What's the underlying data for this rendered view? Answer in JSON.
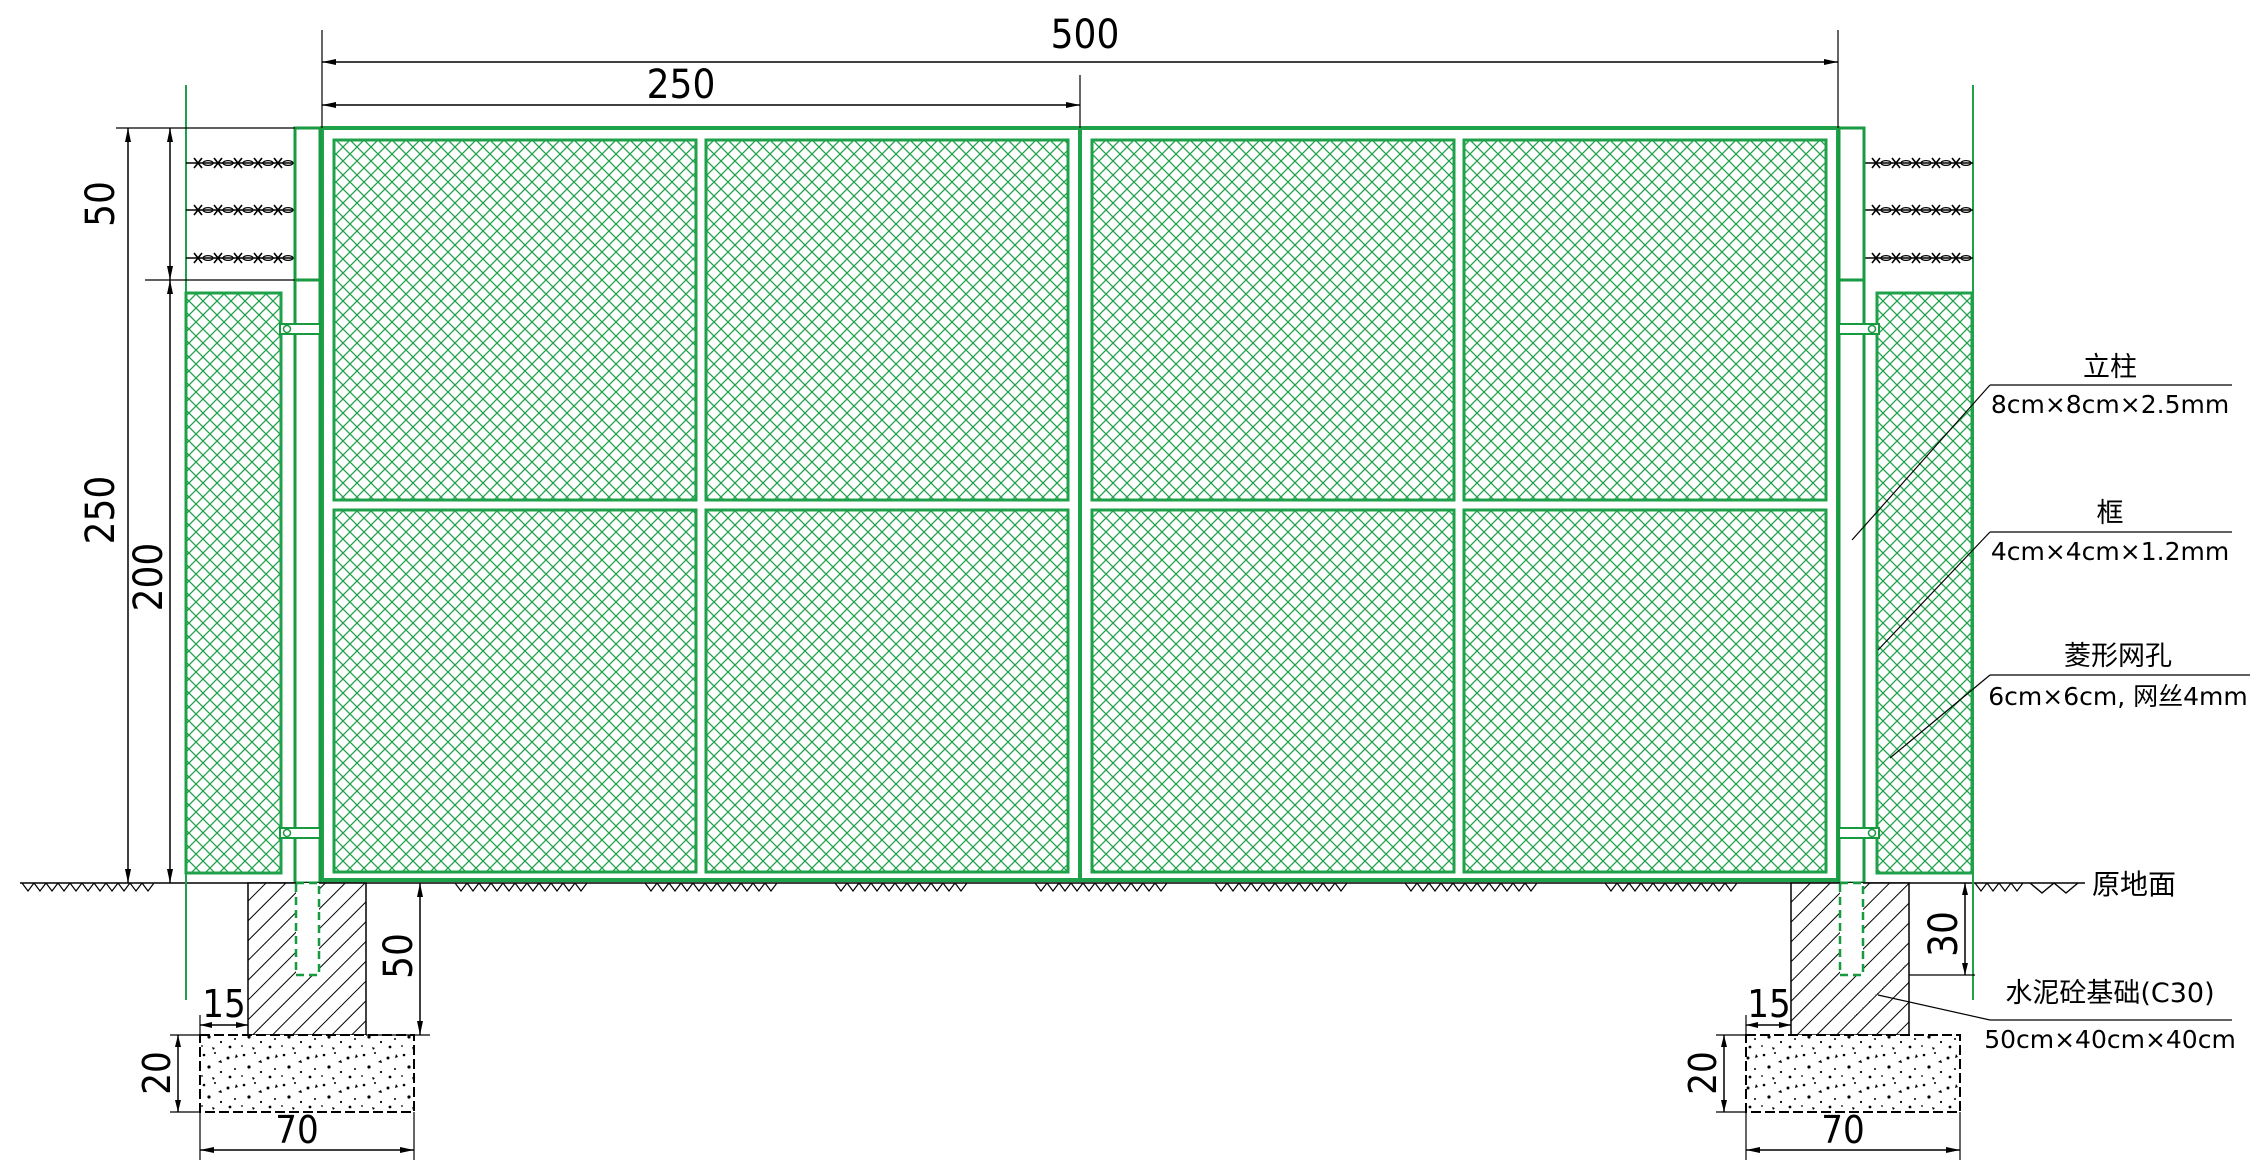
{
  "dimensions": {
    "total_width": "500",
    "half_width": "250",
    "top_wire_height": "50",
    "total_height": "250",
    "fence_height": "200",
    "footing_depth": "50",
    "ground_to_mark": "30",
    "offset_left": "15",
    "offset_right": "15",
    "base_thickness_left": "20",
    "base_thickness_right": "20",
    "base_width_left": "70",
    "base_width_right": "70"
  },
  "annotations": {
    "post_title": "立柱",
    "post_spec": "8cm×8cm×2.5mm",
    "frame_title": "框",
    "frame_spec": "4cm×4cm×1.2mm",
    "mesh_title": "菱形网孔",
    "mesh_spec": "6cm×6cm, 网丝4mm",
    "ground_label": "原地面",
    "foundation_title": "水泥砼基础(C30)",
    "foundation_spec": "50cm×40cm×40cm"
  },
  "colors": {
    "mesh_green": "#1fa14a",
    "post_green": "#179a40",
    "line_black": "#000000"
  }
}
